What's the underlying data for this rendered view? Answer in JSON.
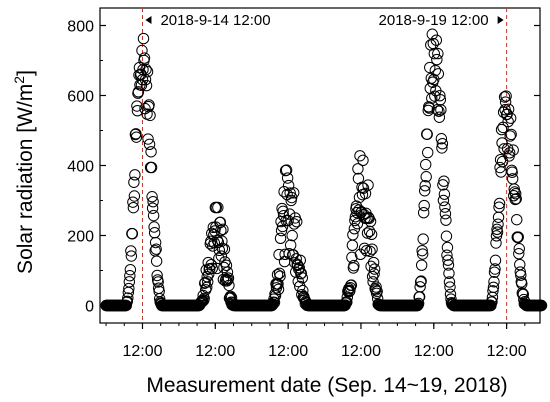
{
  "chart_data": {
    "type": "scatter",
    "xlabel": "Measurement date (Sep. 14~19, 2018)",
    "ylabel": "Solar radiation [W/m²]",
    "ylabel_parts": {
      "main": "Solar radiation [W/m",
      "sup": "2",
      "close": "]"
    },
    "xlim": [
      "2018-09-13 22:00",
      "2018-09-19 23:00"
    ],
    "ylim": [
      -50,
      850
    ],
    "y_ticks": [
      0,
      200,
      400,
      600,
      800
    ],
    "y_tick_labels": [
      "0",
      "200",
      "400",
      "600",
      "800"
    ],
    "x_ticks": [
      "2018-09-14 12:00",
      "2018-09-15 12:00",
      "2018-09-16 12:00",
      "2018-09-17 12:00",
      "2018-09-18 12:00",
      "2018-09-19 12:00"
    ],
    "x_tick_labels": [
      "12:00",
      "12:00",
      "12:00",
      "12:00",
      "12:00",
      "12:00"
    ],
    "marker": "open-circle",
    "grid": false,
    "vlines": [
      {
        "x": "2018-09-14 12:00",
        "style": "dashed",
        "color": "#c0392b"
      },
      {
        "x": "2018-09-19 12:00",
        "style": "dashed",
        "color": "#c0392b"
      }
    ],
    "annotations": [
      {
        "text": "2018-9-14  12:00",
        "at": "2018-09-14 12:00",
        "arrow": "left"
      },
      {
        "text": "2018-9-19  12:00",
        "at": "2018-09-19 12:00",
        "arrow": "right"
      }
    ],
    "daily_profiles": [
      {
        "date": "2018-09-14",
        "peak": 775,
        "peak_hour": 12.0
      },
      {
        "date": "2018-09-15",
        "peak": 280,
        "peak_hour": 12.5
      },
      {
        "date": "2018-09-16",
        "peak": 390,
        "peak_hour": 12.3
      },
      {
        "date": "2018-09-17",
        "peak": 430,
        "peak_hour": 12.5
      },
      {
        "date": "2018-09-18",
        "peak": 775,
        "peak_hour": 12.0
      },
      {
        "date": "2018-09-19",
        "peak": 610,
        "peak_hour": 11.8
      }
    ],
    "night_value": 0
  },
  "colors": {
    "axis": "#000000",
    "marker": "#000000",
    "vline": "#c0392b"
  }
}
